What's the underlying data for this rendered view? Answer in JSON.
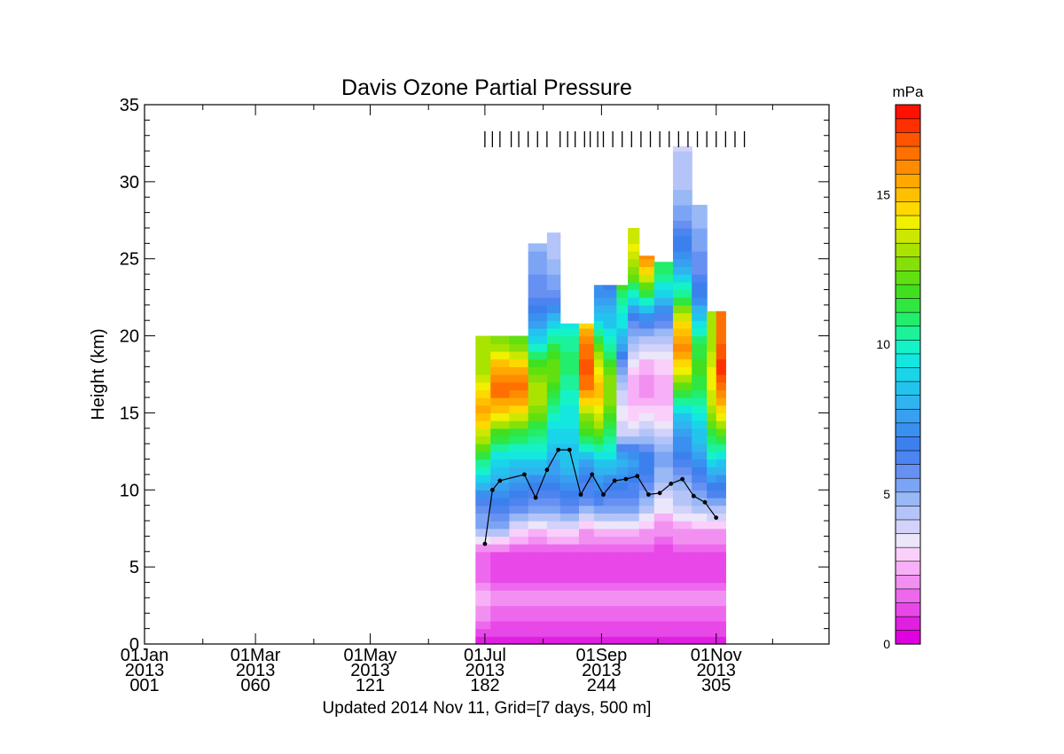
{
  "chart_data": {
    "type": "heatmap",
    "title": "Davis Ozone Partial Pressure",
    "ylabel": "Height (km)",
    "xlabel": "",
    "footer": "Updated 2014 Nov 11, Grid=[7 days, 500 m]",
    "xlim": [
      1,
      365
    ],
    "ylim": [
      0,
      35
    ],
    "yticks": [
      0,
      5,
      10,
      15,
      20,
      25,
      30,
      35
    ],
    "xticks": [
      {
        "day": 1,
        "l1": "01Jan",
        "l2": "2013",
        "l3": "001"
      },
      {
        "day": 60,
        "l1": "01Mar",
        "l2": "2013",
        "l3": "060"
      },
      {
        "day": 121,
        "l1": "01May",
        "l2": "2013",
        "l3": "121"
      },
      {
        "day": 182,
        "l1": "01Jul",
        "l2": "2013",
        "l3": "182"
      },
      {
        "day": 244,
        "l1": "01Sep",
        "l2": "2013",
        "l3": "244"
      },
      {
        "day": 305,
        "l1": "01Nov",
        "l2": "2013",
        "l3": "305"
      }
    ],
    "colorbar": {
      "label": "mPa",
      "range": [
        0,
        18
      ],
      "ticks": [
        0,
        5,
        10,
        15
      ],
      "colors": [
        "#e000e0",
        "#e020e0",
        "#e848e8",
        "#ee68ee",
        "#f290f2",
        "#f7b0f7",
        "#fad0fa",
        "#ece6fb",
        "#d2d2fa",
        "#b4c4f8",
        "#98b8f6",
        "#7ca4f4",
        "#6690f2",
        "#4c84f0",
        "#3c80ee",
        "#3a90ef",
        "#38a0f0",
        "#30b4f0",
        "#22c4ee",
        "#1ad4ea",
        "#14e6e0",
        "#16f2c8",
        "#1cf29a",
        "#22ee6c",
        "#30e640",
        "#40e020",
        "#60e010",
        "#84e008",
        "#a8e400",
        "#cce800",
        "#f0f000",
        "#ffd800",
        "#ffc000",
        "#ffa800",
        "#ff8c00",
        "#ff7000",
        "#ff5400",
        "#ff3000",
        "#ff1000"
      ]
    },
    "profile_days": [
      182,
      186,
      190,
      196,
      200,
      205,
      210,
      215,
      222,
      226,
      230,
      235,
      238,
      242,
      245,
      250,
      255,
      260,
      265,
      270,
      275,
      280,
      285,
      290,
      295,
      300,
      305,
      310,
      315,
      320
    ],
    "tropopause": [
      {
        "day": 182,
        "h": 6.5
      },
      {
        "day": 186,
        "h": 10.0
      },
      {
        "day": 190,
        "h": 10.6
      },
      {
        "day": 203,
        "h": 11.0
      },
      {
        "day": 209,
        "h": 9.5
      },
      {
        "day": 215,
        "h": 11.3
      },
      {
        "day": 221,
        "h": 12.6
      },
      {
        "day": 227,
        "h": 12.6
      },
      {
        "day": 233,
        "h": 9.7
      },
      {
        "day": 239,
        "h": 11.0
      },
      {
        "day": 245,
        "h": 9.7
      },
      {
        "day": 251,
        "h": 10.6
      },
      {
        "day": 257,
        "h": 10.7
      },
      {
        "day": 263,
        "h": 10.9
      },
      {
        "day": 269,
        "h": 9.7
      },
      {
        "day": 275,
        "h": 9.8
      },
      {
        "day": 281,
        "h": 10.4
      },
      {
        "day": 287,
        "h": 10.7
      },
      {
        "day": 293,
        "h": 9.6
      },
      {
        "day": 299,
        "h": 9.2
      },
      {
        "day": 305,
        "h": 8.2
      }
    ],
    "columns": [
      {
        "d0": 177,
        "d1": 185,
        "top": 20.0,
        "s": [
          0.5,
          2.0,
          2.5,
          1.5,
          1.5,
          5.0,
          6.0,
          8.5,
          11.0,
          13.5,
          15.5,
          14.5,
          13.0,
          13.0
        ]
      },
      {
        "d0": 185,
        "d1": 195,
        "top": 20.0,
        "s": [
          0.5,
          1.5,
          2.0,
          1.2,
          1.4,
          5.0,
          6.5,
          8.0,
          9.0,
          11.5,
          14.5,
          16.5,
          15.5,
          12.5
        ]
      },
      {
        "d0": 195,
        "d1": 205,
        "top": 20.0,
        "s": [
          0.5,
          1.5,
          2.0,
          1.2,
          1.2,
          3.5,
          6.0,
          7.5,
          9.0,
          11.0,
          14.0,
          16.5,
          15.0,
          12.0
        ]
      },
      {
        "d0": 205,
        "d1": 215,
        "top": 26.0,
        "s": [
          0.5,
          1.5,
          2.0,
          1.2,
          1.2,
          3.0,
          5.5,
          7.0,
          9.0,
          10.5,
          12.5,
          13.5,
          12.0,
          9.5,
          7.5,
          6.0,
          5.5,
          5.0,
          5.0
        ]
      },
      {
        "d0": 215,
        "d1": 222,
        "top": 26.7,
        "s": [
          0.5,
          1.5,
          2.0,
          1.2,
          1.2,
          3.5,
          5.5,
          7.0,
          8.0,
          9.0,
          10.0,
          11.5,
          12.5,
          11.0,
          8.5,
          6.0,
          5.0,
          4.5,
          4.5
        ]
      },
      {
        "d0": 222,
        "d1": 232,
        "top": 20.8,
        "s": [
          0.5,
          1.5,
          2.0,
          1.2,
          1.2,
          3.5,
          6.0,
          7.5,
          8.5,
          9.0,
          9.5,
          10.0,
          11.0,
          10.5,
          9.0
        ]
      },
      {
        "d0": 232,
        "d1": 240,
        "top": 20.8,
        "s": [
          0.5,
          1.5,
          2.0,
          1.2,
          1.2,
          2.5,
          5.5,
          6.5,
          8.0,
          11.5,
          13.0,
          16.0,
          17.0,
          16.0,
          14.5
        ]
      },
      {
        "d0": 240,
        "d1": 245,
        "top": 23.3,
        "s": [
          0.5,
          1.5,
          2.0,
          1.2,
          1.2,
          3.0,
          6.0,
          7.5,
          9.0,
          12.0,
          14.0,
          15.0,
          14.0,
          12.0,
          9.0,
          7.5,
          6.5
        ]
      },
      {
        "d0": 245,
        "d1": 252,
        "top": 23.3,
        "s": [
          0.5,
          1.5,
          2.0,
          1.2,
          1.2,
          3.0,
          5.5,
          7.0,
          9.0,
          10.5,
          12.0,
          13.0,
          12.0,
          10.0,
          8.5,
          7.5,
          6.0
        ]
      },
      {
        "d0": 252,
        "d1": 258,
        "top": 23.3,
        "s": [
          0.5,
          1.5,
          2.0,
          1.2,
          1.2,
          3.0,
          5.5,
          7.0,
          8.5,
          4.0,
          3.5,
          4.0,
          5.5,
          8.0,
          9.5,
          10.5,
          13.0
        ]
      },
      {
        "d0": 258,
        "d1": 264,
        "top": 27.0,
        "s": [
          0.5,
          1.5,
          2.0,
          1.2,
          1.2,
          3.0,
          5.5,
          6.5,
          8.0,
          4.0,
          3.0,
          2.5,
          3.0,
          4.5,
          6.0,
          9.5,
          12.5,
          14.0,
          13.5,
          11.5
        ]
      },
      {
        "d0": 264,
        "d1": 272,
        "top": 25.2,
        "s": [
          0.5,
          1.5,
          2.0,
          1.2,
          1.2,
          2.5,
          4.5,
          6.0,
          7.0,
          4.5,
          3.0,
          2.0,
          2.5,
          4.0,
          6.5,
          10.5,
          14.0,
          16.5,
          14.5
        ]
      },
      {
        "d0": 272,
        "d1": 282,
        "top": 24.8,
        "s": [
          0.5,
          1.5,
          2.0,
          1.2,
          1.2,
          2.0,
          3.5,
          4.5,
          5.5,
          4.0,
          3.0,
          2.5,
          3.0,
          4.0,
          6.0,
          8.5,
          10.5,
          11.5,
          10.5
        ]
      },
      {
        "d0": 282,
        "d1": 292,
        "top": 32.3,
        "s": [
          0.5,
          1.5,
          2.0,
          1.2,
          1.2,
          2.5,
          4.0,
          5.0,
          6.5,
          7.5,
          9.0,
          12.0,
          14.5,
          16.0,
          14.0,
          11.0,
          8.5,
          7.0,
          6.0,
          5.0,
          4.5,
          4.2,
          4.0,
          4.0,
          4.0
        ]
      },
      {
        "d0": 292,
        "d1": 300,
        "top": 28.5,
        "s": [
          0.5,
          1.5,
          2.0,
          1.2,
          1.2,
          2.5,
          4.5,
          6.0,
          7.5,
          8.5,
          9.5,
          11.0,
          12.0,
          11.0,
          9.0,
          7.0,
          6.0,
          5.5,
          5.0,
          5.0,
          4.5
        ]
      },
      {
        "d0": 300,
        "d1": 305,
        "top": 21.6,
        "s": [
          0.5,
          1.5,
          2.0,
          1.2,
          1.2,
          2.5,
          5.0,
          7.0,
          9.5,
          11.0,
          13.0,
          14.0,
          14.0,
          13.0
        ]
      },
      {
        "d0": 305,
        "d1": 310,
        "top": 21.6,
        "s": [
          0.5,
          1.5,
          2.0,
          1.2,
          1.2,
          2.5,
          5.0,
          7.0,
          9.0,
          12.0,
          14.5,
          16.0,
          17.5,
          16.5
        ]
      }
    ]
  }
}
